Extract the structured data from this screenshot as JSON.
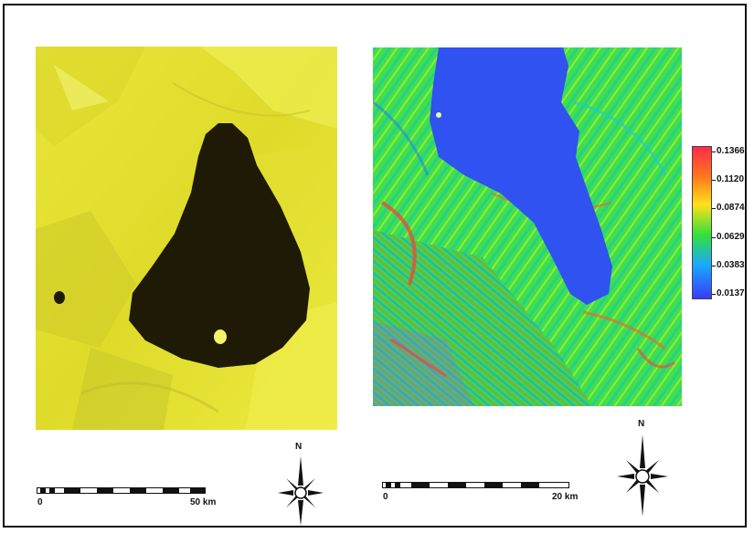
{
  "legend": {
    "labels": [
      "0.1366",
      "0.1120",
      "0.0874",
      "0.0629",
      "0.0383",
      "0.0137"
    ],
    "colors": [
      "#ff2a4a",
      "#ff7a1a",
      "#ffe11a",
      "#34e03a",
      "#1aa8ff",
      "#3a3aff"
    ]
  },
  "scale_left": {
    "start": "0",
    "end": "50 km"
  },
  "scale_right": {
    "start": "0",
    "end": "20 km"
  },
  "north_left": {
    "label": "N",
    "icon": "compass-rose-icon"
  },
  "north_right": {
    "label": "N",
    "icon": "compass-rose-icon"
  },
  "colors": {
    "left_background": "#e6e42a",
    "lake_dark": "#1e1a05",
    "right_lake": "#2f52f0",
    "right_land": "#3fe04a"
  }
}
